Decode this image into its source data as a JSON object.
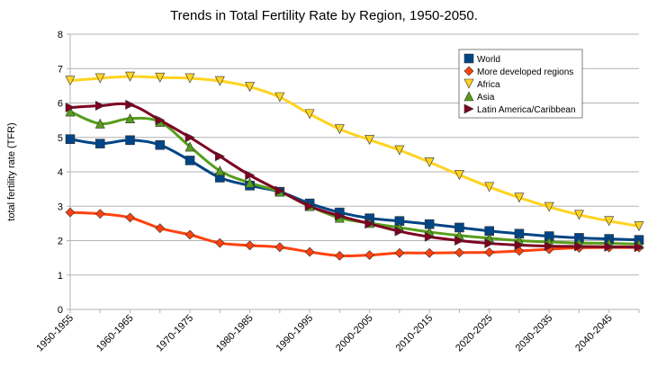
{
  "chart_data": {
    "type": "line",
    "title": "Trends in Total Fertility Rate by Region, 1950-2050.",
    "y_label": "total fertility rate (TFR)",
    "categories": [
      "1950-1955",
      null,
      "1960-1965",
      null,
      "1970-1975",
      null,
      "1980-1985",
      null,
      "1990-1995",
      null,
      "2000-2005",
      null,
      "2010-2015",
      null,
      "2020-2025",
      null,
      "2030-2035",
      null,
      "2040-2045",
      null
    ],
    "ylim": [
      0,
      8
    ],
    "yticks": [
      0,
      1,
      2,
      3,
      4,
      5,
      6,
      7,
      8
    ],
    "grid": true,
    "legend": "upper right",
    "series": [
      {
        "name": "World",
        "color": "#004586",
        "marker": "square",
        "values": [
          4.95,
          4.82,
          4.92,
          4.78,
          4.33,
          3.83,
          3.6,
          3.42,
          3.08,
          2.82,
          2.65,
          2.57,
          2.48,
          2.38,
          2.28,
          2.2,
          2.13,
          2.08,
          2.05,
          2.02
        ]
      },
      {
        "name": "More developed regions",
        "color": "#ff420e",
        "marker": "diamond",
        "values": [
          2.82,
          2.78,
          2.67,
          2.36,
          2.17,
          1.93,
          1.86,
          1.81,
          1.67,
          1.56,
          1.58,
          1.64,
          1.64,
          1.65,
          1.66,
          1.7,
          1.75,
          1.79,
          1.8,
          1.8
        ]
      },
      {
        "name": "Africa",
        "color": "#ffd320",
        "marker": "triangle-down",
        "values": [
          6.65,
          6.72,
          6.77,
          6.74,
          6.72,
          6.64,
          6.47,
          6.17,
          5.68,
          5.24,
          4.93,
          4.63,
          4.28,
          3.91,
          3.56,
          3.25,
          2.98,
          2.75,
          2.57,
          2.42
        ]
      },
      {
        "name": "Asia",
        "color": "#579d1c",
        "marker": "triangle-up",
        "values": [
          5.75,
          5.4,
          5.55,
          5.45,
          4.73,
          4.03,
          3.68,
          3.42,
          3.0,
          2.66,
          2.51,
          2.38,
          2.25,
          2.15,
          2.07,
          2.0,
          1.96,
          1.93,
          1.92,
          1.9
        ]
      },
      {
        "name": "Latin America/Caribbean",
        "color": "#7e0021",
        "marker": "triangle-right",
        "values": [
          5.87,
          5.92,
          5.95,
          5.5,
          5.0,
          4.45,
          3.9,
          3.45,
          3.0,
          2.72,
          2.49,
          2.27,
          2.11,
          2.0,
          1.92,
          1.87,
          1.84,
          1.83,
          1.82,
          1.81
        ]
      }
    ]
  }
}
